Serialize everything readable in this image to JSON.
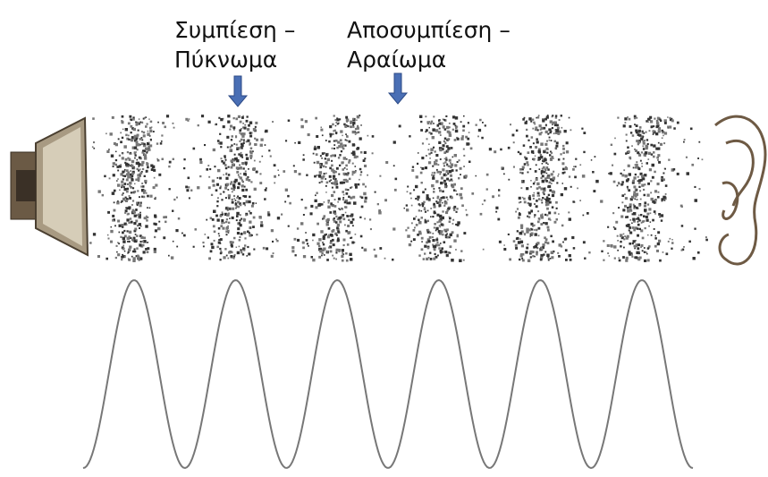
{
  "labels": [
    {
      "lines": [
        "Συμπίεση –",
        "Πύκνωμα"
      ]
    },
    {
      "lines": [
        "Αποσυμπίεση –",
        "Αραίωμα"
      ]
    }
  ]
}
